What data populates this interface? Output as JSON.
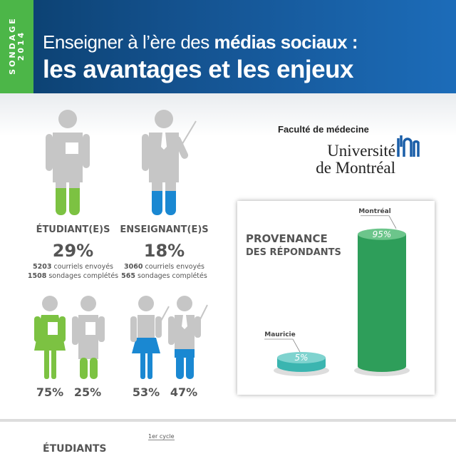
{
  "header": {
    "tag_line1": "SONDAGE",
    "tag_line2": "2014",
    "title_light": "Enseigner à l’ère des ",
    "title_bold": "médias sociaux :",
    "subtitle": "les avantages et les enjeux"
  },
  "logo": {
    "faculty": "Faculté de médecine",
    "university_line1": "Université",
    "university_line2": "de Montréal"
  },
  "colors": {
    "green": "#4cb648",
    "blue": "#1a88d2",
    "header_blue": "#14528f",
    "teal": "#3bb5b0",
    "gray": "#c6c6c6"
  },
  "students": {
    "label": "ÉTUDIANT(E)S",
    "percent": "29%",
    "emails_num": "5203",
    "emails_text": " courriels envoyés",
    "surveys_num": "1508",
    "surveys_text": " sondages complétés",
    "female": "75%",
    "male": "25%"
  },
  "teachers": {
    "label": "ENSEIGNANT(E)S",
    "percent": "18%",
    "emails_num": "3060",
    "emails_text": " courriels envoyés",
    "surveys_num": "565",
    "surveys_text": " sondages complétés",
    "female": "53%",
    "male": "47%"
  },
  "chart_data": {
    "type": "bar",
    "title_line1": "PROVENANCE",
    "title_line2": "DES RÉPONDANTS",
    "categories": [
      "Mauricie",
      "Montréal"
    ],
    "values": [
      5,
      95
    ],
    "value_labels": [
      "5%",
      "95%"
    ],
    "colors": [
      "#3bb5b0",
      "#2e9e5a"
    ]
  },
  "footer": {
    "section": "ÉTUDIANTS",
    "cycle": "1er cycle"
  }
}
